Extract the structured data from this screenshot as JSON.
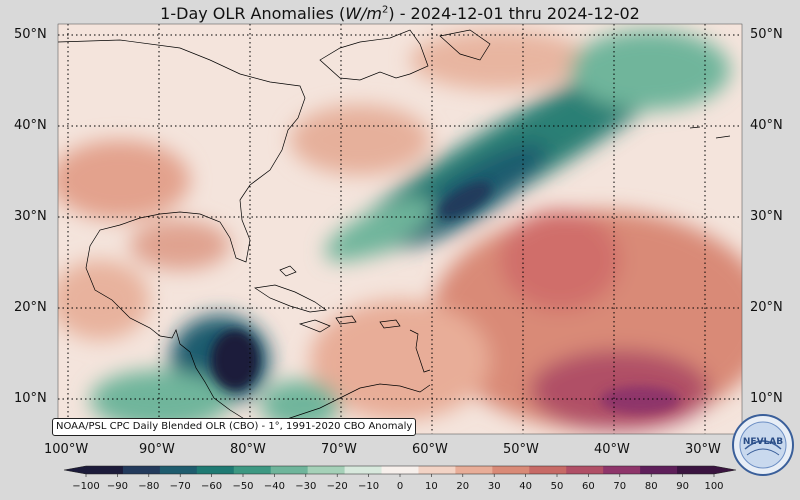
{
  "title": {
    "prefix": "1-Day OLR Anomalies (",
    "unit_base": "W/m",
    "unit_exp": "2",
    "suffix": ") - 2024-12-01 thru 2024-12-02"
  },
  "lat_labels": [
    "50°N",
    "40°N",
    "30°N",
    "20°N",
    "10°N"
  ],
  "lat_values": [
    50,
    40,
    30,
    20,
    10
  ],
  "lon_labels": [
    "100°W",
    "90°W",
    "80°W",
    "70°W",
    "60°W",
    "50°W",
    "40°W",
    "30°W"
  ],
  "lon_values": [
    -100,
    -90,
    -80,
    -70,
    -60,
    -50,
    -40,
    -30
  ],
  "caption": "NOAA/PSL CPC Daily Blended OLR (CBO) - 1°, 1991-2020 CBO Anomaly",
  "logo_text": "NEVLAB",
  "colorbar": {
    "min": -100,
    "max": 100,
    "ticks": [
      "−100",
      "−90",
      "−80",
      "−70",
      "−60",
      "−50",
      "−40",
      "−30",
      "−20",
      "−10",
      "0",
      "10",
      "20",
      "30",
      "40",
      "50",
      "60",
      "70",
      "80",
      "90",
      "100"
    ],
    "tick_values": [
      -100,
      -90,
      -80,
      -70,
      -60,
      -50,
      -40,
      -30,
      -20,
      -10,
      0,
      10,
      20,
      30,
      40,
      50,
      60,
      70,
      80,
      90,
      100
    ],
    "colors": [
      "#1c1b3a",
      "#233a5c",
      "#1f5c6e",
      "#1f7a73",
      "#3d9882",
      "#6fb59b",
      "#a5d1b8",
      "#d8e9dd",
      "#f7f0ec",
      "#f2d3c5",
      "#e8ad98",
      "#d98a77",
      "#c76a66",
      "#b04f66",
      "#8e356a",
      "#5e1f5a",
      "#3a1440"
    ]
  }
}
